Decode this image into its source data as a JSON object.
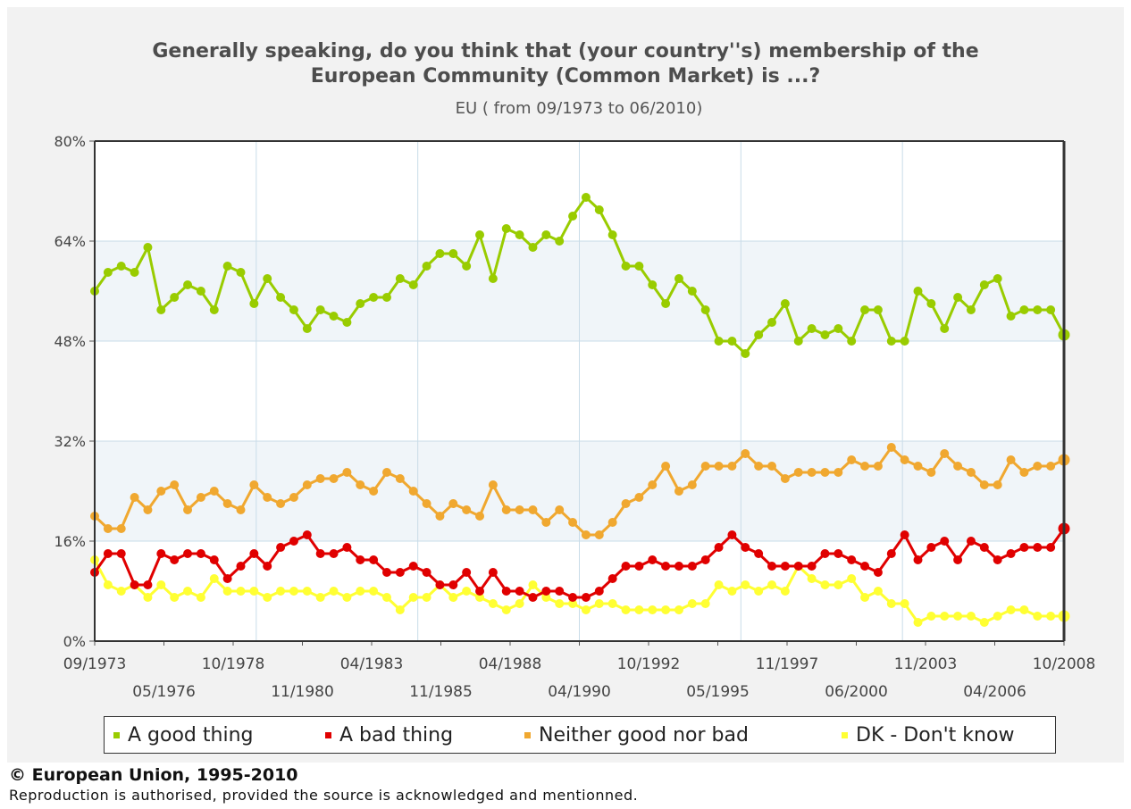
{
  "header": {
    "title_line1": "Generally speaking, do you think that (your country''s) membership of the",
    "title_line2": "European Community (Common Market) is ...?",
    "subtitle": "EU ( from 09/1973 to 06/2010)"
  },
  "legend": {
    "items": [
      {
        "label": "A good thing",
        "color": "#99cc00"
      },
      {
        "label": "A bad thing",
        "color": "#e00000"
      },
      {
        "label": "Neither good nor bad",
        "color": "#f0a830"
      },
      {
        "label": "DK - Don't know",
        "color": "#ffff33"
      }
    ]
  },
  "footer": {
    "copyright": "© European Union, 1995-2010",
    "reproduction": "Reproduction is authorised, provided the source is acknowledged and mentionned."
  },
  "chart_data": {
    "type": "line",
    "y_ticks": [
      "0%",
      "16%",
      "32%",
      "48%",
      "64%",
      "80%"
    ],
    "ylim": [
      0,
      80
    ],
    "x_tick_labels_top": [
      "09/1973",
      "10/1978",
      "04/1983",
      "04/1988",
      "10/1992",
      "11/1997",
      "11/2003",
      "10/2008"
    ],
    "x_tick_labels_bottom": [
      "05/1976",
      "11/1980",
      "11/1985",
      "04/1990",
      "05/1995",
      "06/2000",
      "04/2006"
    ],
    "grid": true,
    "legend_position": "bottom",
    "series": [
      {
        "name": "A good thing",
        "color": "#99cc00",
        "values": [
          56,
          59,
          60,
          59,
          63,
          53,
          55,
          57,
          56,
          53,
          60,
          59,
          54,
          58,
          55,
          53,
          50,
          53,
          52,
          51,
          54,
          55,
          55,
          58,
          57,
          60,
          62,
          62,
          60,
          65,
          58,
          66,
          65,
          63,
          65,
          64,
          68,
          71,
          69,
          65,
          60,
          60,
          57,
          54,
          58,
          56,
          53,
          48,
          48,
          46,
          49,
          51,
          54,
          48,
          50,
          49,
          50,
          48,
          53,
          53,
          48,
          48,
          56,
          54,
          50,
          55,
          53,
          57,
          58,
          52,
          53,
          53,
          53,
          49
        ]
      },
      {
        "name": "A bad thing",
        "color": "#e00000",
        "values": [
          11,
          14,
          14,
          9,
          9,
          14,
          13,
          14,
          14,
          13,
          10,
          12,
          14,
          12,
          15,
          16,
          17,
          14,
          14,
          15,
          13,
          13,
          11,
          11,
          12,
          11,
          9,
          9,
          11,
          8,
          11,
          8,
          8,
          7,
          8,
          8,
          7,
          7,
          8,
          10,
          12,
          12,
          13,
          12,
          12,
          12,
          13,
          15,
          17,
          15,
          14,
          12,
          12,
          12,
          12,
          14,
          14,
          13,
          12,
          11,
          14,
          17,
          13,
          15,
          16,
          13,
          16,
          15,
          13,
          14,
          15,
          15,
          15,
          18
        ]
      },
      {
        "name": "Neither good nor bad",
        "color": "#f0a830",
        "values": [
          20,
          18,
          18,
          23,
          21,
          24,
          25,
          21,
          23,
          24,
          22,
          21,
          25,
          23,
          22,
          23,
          25,
          26,
          26,
          27,
          25,
          24,
          27,
          26,
          24,
          22,
          20,
          22,
          21,
          20,
          25,
          21,
          21,
          21,
          19,
          21,
          19,
          17,
          17,
          19,
          22,
          23,
          25,
          28,
          24,
          25,
          28,
          28,
          28,
          30,
          28,
          28,
          26,
          27,
          27,
          27,
          27,
          29,
          28,
          28,
          31,
          29,
          28,
          27,
          30,
          28,
          27,
          25,
          25,
          29,
          27,
          28,
          28,
          29
        ]
      },
      {
        "name": "DK - Don't know",
        "color": "#ffff33",
        "values": [
          13,
          9,
          8,
          9,
          7,
          9,
          7,
          8,
          7,
          10,
          8,
          8,
          8,
          7,
          8,
          8,
          8,
          7,
          8,
          7,
          8,
          8,
          7,
          5,
          7,
          7,
          9,
          7,
          8,
          7,
          6,
          5,
          6,
          9,
          7,
          6,
          6,
          5,
          6,
          6,
          5,
          5,
          5,
          5,
          5,
          6,
          6,
          9,
          8,
          9,
          8,
          9,
          8,
          12,
          10,
          9,
          9,
          10,
          7,
          8,
          6,
          6,
          3,
          4,
          4,
          4,
          4,
          3,
          4,
          5,
          5,
          4,
          4,
          4
        ]
      }
    ]
  }
}
